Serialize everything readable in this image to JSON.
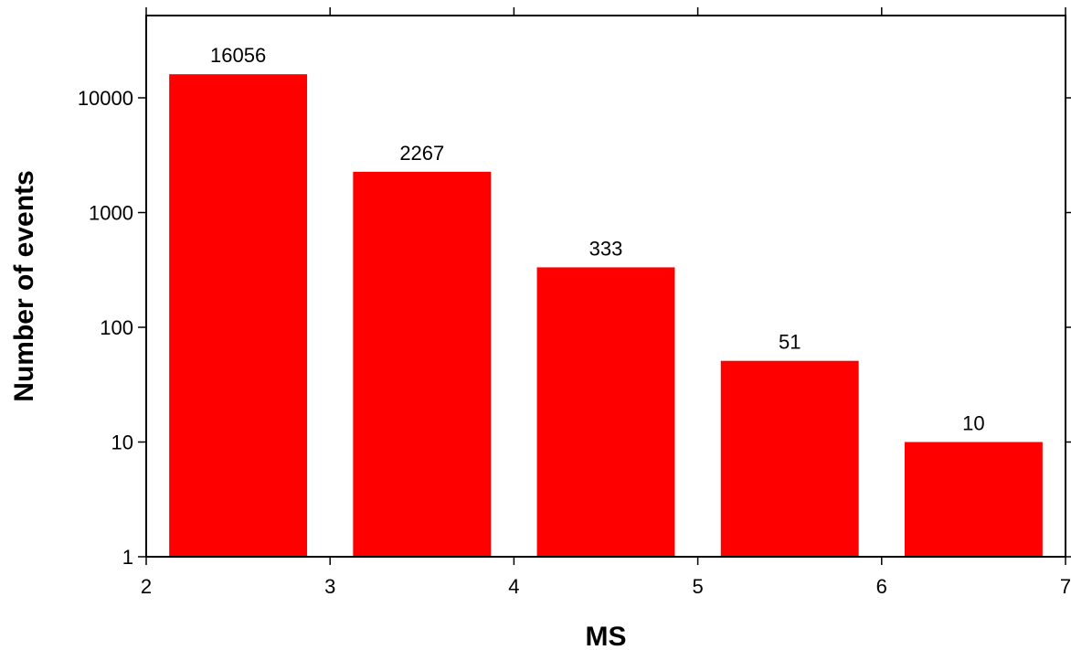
{
  "chart_data": {
    "type": "bar",
    "xlabel": "MS",
    "ylabel": "Number of events",
    "xlim": [
      2,
      7
    ],
    "ylim": [
      1,
      50000
    ],
    "yscale": "log",
    "grid": false,
    "bars": [
      {
        "x_start": 2.125,
        "x_end": 2.875,
        "value": 16056,
        "label": "16056"
      },
      {
        "x_start": 3.125,
        "x_end": 3.875,
        "value": 2267,
        "label": "2267"
      },
      {
        "x_start": 4.125,
        "x_end": 4.875,
        "value": 333,
        "label": "333"
      },
      {
        "x_start": 5.125,
        "x_end": 5.875,
        "value": 51,
        "label": "51"
      },
      {
        "x_start": 6.125,
        "x_end": 6.875,
        "value": 10,
        "label": "10"
      }
    ],
    "x_ticks": [
      {
        "value": 2,
        "label": "2"
      },
      {
        "value": 3,
        "label": "3"
      },
      {
        "value": 4,
        "label": "4"
      },
      {
        "value": 5,
        "label": "5"
      },
      {
        "value": 6,
        "label": "6"
      },
      {
        "value": 7,
        "label": "7"
      }
    ],
    "y_ticks": [
      {
        "value": 1,
        "label": "1"
      },
      {
        "value": 10,
        "label": "10"
      },
      {
        "value": 100,
        "label": "100"
      },
      {
        "value": 1000,
        "label": "1000"
      },
      {
        "value": 10000,
        "label": "10000"
      }
    ],
    "colors": {
      "bar": "#ff0000",
      "axis": "#000000"
    }
  }
}
